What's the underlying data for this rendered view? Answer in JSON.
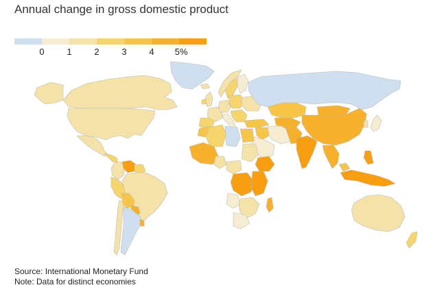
{
  "title": "Annual change in gross domestic product",
  "legend": {
    "bins": [
      {
        "label": "",
        "color": "#cfdff0"
      },
      {
        "label": "0",
        "color": "#f6ecd2"
      },
      {
        "label": "1",
        "color": "#f5e2a8"
      },
      {
        "label": "2",
        "color": "#f6d56c"
      },
      {
        "label": "3",
        "color": "#f7c548"
      },
      {
        "label": "4",
        "color": "#f8b12c"
      },
      {
        "label": "5%",
        "color": "#f99e10"
      }
    ]
  },
  "colors": {
    "ocean": "#ffffff",
    "no_data": "#ffffff",
    "border": "#bbbbbb"
  },
  "footer": {
    "source": "Source: International Monetary Fund",
    "note": "Note: Data for distinct economies"
  }
}
